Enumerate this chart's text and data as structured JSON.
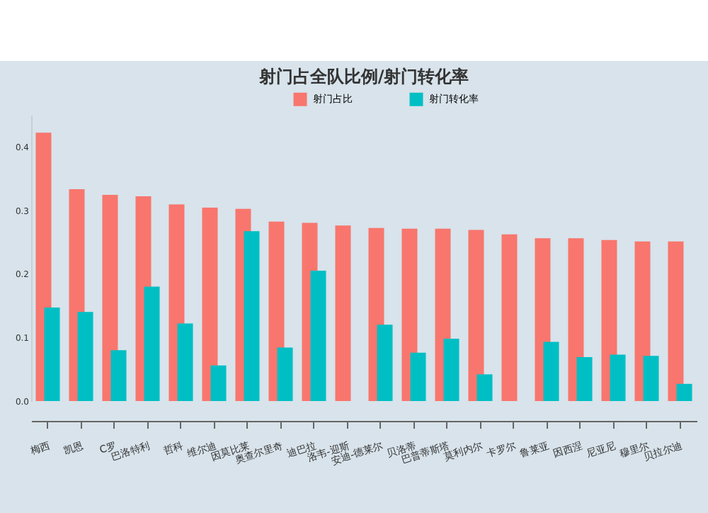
{
  "chart_data": {
    "type": "bar",
    "title": "射门占全队比例/射门转化率",
    "categories": [
      "梅西",
      "凯恩",
      "C罗",
      "巴洛特利",
      "哲科",
      "维尔迪",
      "因莫比莱",
      "奥查尔里奇",
      "迪巴拉",
      "洛韦-迎斯",
      "安迪-德莱尔",
      "贝洛蒂",
      "巴普蒂斯塔",
      "莫利内尔",
      "卡罗尔",
      "鲁莱亚",
      "因西涅",
      "尼亚尼",
      "穆里尔",
      "贝拉尔迪"
    ],
    "series": [
      {
        "name": "射门占比",
        "color": "#f8766d",
        "values": [
          0.422,
          0.333,
          0.324,
          0.322,
          0.309,
          0.304,
          0.302,
          0.282,
          0.28,
          0.276,
          0.272,
          0.271,
          0.271,
          0.269,
          0.262,
          0.256,
          0.256,
          0.253,
          0.251,
          0.251
        ]
      },
      {
        "name": "射门转化率",
        "color": "#00bfc4",
        "values": [
          0.147,
          0.14,
          0.08,
          0.18,
          0.122,
          0.056,
          0.267,
          0.084,
          0.205,
          0,
          0.12,
          0.076,
          0.098,
          0.042,
          0,
          0.093,
          0.069,
          0.073,
          0.071,
          0.027
        ]
      }
    ],
    "ylim": [
      0,
      0.45
    ],
    "yticks": [
      {
        "value": 0,
        "label": "0.0"
      },
      {
        "value": 0.1,
        "label": "0.1"
      },
      {
        "value": 0.2,
        "label": "0.2"
      },
      {
        "value": 0.3,
        "label": "0.3"
      },
      {
        "value": 0.4,
        "label": "0.4"
      }
    ],
    "legend": "top"
  }
}
